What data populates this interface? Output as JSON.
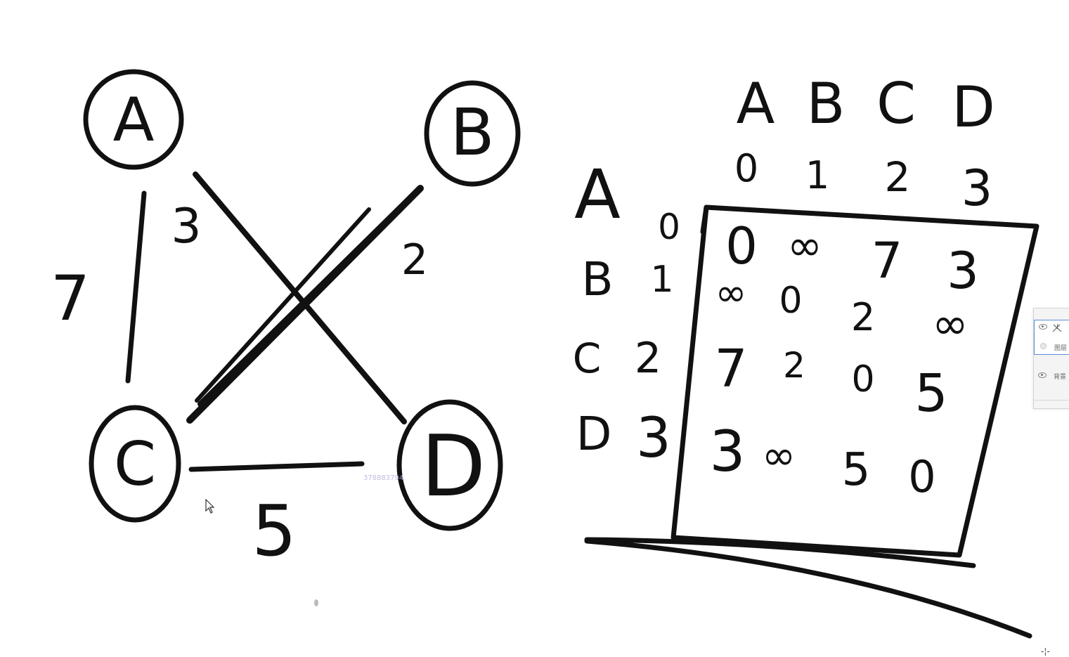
{
  "graph": {
    "nodes": [
      {
        "id": "A",
        "label": "A"
      },
      {
        "id": "B",
        "label": "B"
      },
      {
        "id": "C",
        "label": "C"
      },
      {
        "id": "D",
        "label": "D"
      }
    ],
    "edges": [
      {
        "from": "A",
        "to": "C",
        "weight": "7"
      },
      {
        "from": "A",
        "to": "D",
        "weight": "3"
      },
      {
        "from": "B",
        "to": "C",
        "weight": "2"
      },
      {
        "from": "C",
        "to": "D",
        "weight": "5"
      }
    ]
  },
  "matrix": {
    "col_letters": [
      "A",
      "B",
      "C",
      "D"
    ],
    "col_indices": [
      "0",
      "1",
      "2",
      "3"
    ],
    "row_letters": [
      "A",
      "B",
      "C",
      "D"
    ],
    "row_indices": [
      "0",
      "1",
      "2",
      "3"
    ],
    "cells": [
      [
        "0",
        "∞",
        "7",
        "3"
      ],
      [
        "∞",
        "0",
        "2",
        "∞"
      ],
      [
        "7",
        "2",
        "0",
        "5"
      ],
      [
        "3",
        "∞",
        "5",
        "0"
      ]
    ]
  },
  "watermark": "378883794",
  "layers_panel": {
    "layers": [
      {
        "label": "图层",
        "selected": true
      },
      {
        "label": "背景",
        "selected": false
      }
    ]
  },
  "icons": {
    "eye": "eye-icon",
    "cursor": "mouse-pointer-icon",
    "crosshair": "crosshair-icon"
  }
}
